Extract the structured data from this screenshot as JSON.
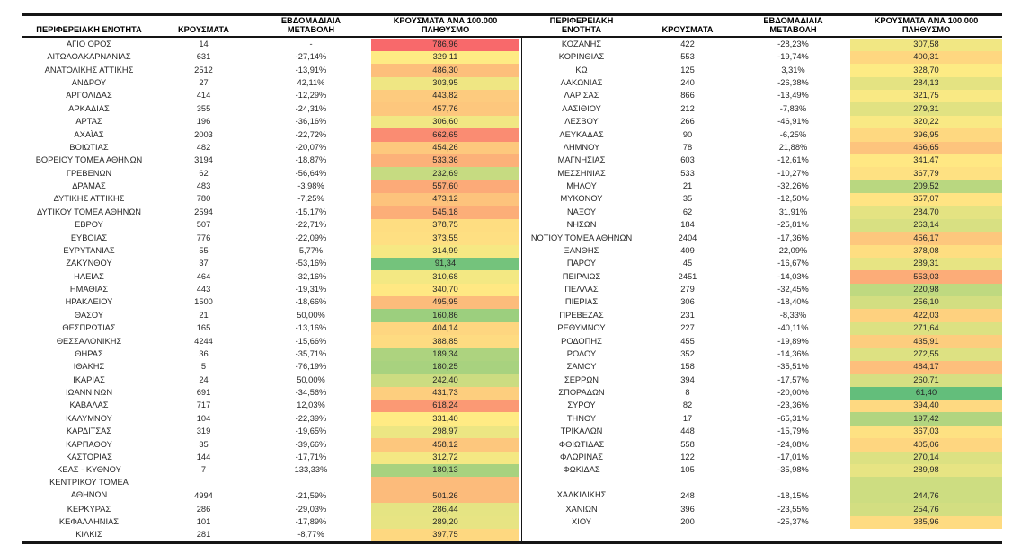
{
  "chart_data": {
    "type": "table",
    "title": "",
    "layout": "two side-by-side panels, heatmap on per-100k column",
    "heat_scale": {
      "applies_to": "per_100k column across both panels",
      "min_color": "#63BE7B",
      "mid_color": "#FFEB84",
      "max_color": "#F8696B",
      "mid_mode": "percentile50"
    },
    "border_color": "#151515",
    "headers": {
      "left": {
        "region": "ΠΕΡΙΦΕΡΕΙΑΚΗ ΕΝΟΤΗΤΑ",
        "cases": "ΚΡΟΥΣΜΑΤΑ",
        "weekly_change": "ΕΒΔΟΜΑΔΙΑΙΑ ΜΕΤΑΒΟΛΗ",
        "per_100k": "ΚΡΟΥΣΜΑΤΑ ΑΝΑ 100.000 ΠΛΗΘΥΣΜΟ"
      },
      "right": {
        "region": "ΠΕΡΙΦΕΡΕΙΑΚΗ ΕΝΟΤΗΤΑ",
        "cases": "ΚΡΟΥΣΜΑΤΑ",
        "weekly_change": "ΕΒΔΟΜΑΔΙΑΙΑ ΜΕΤΑΒΟΛΗ",
        "per_100k": "ΚΡΟΥΣΜΑΤΑ ΑΝΑ 100.000 ΠΛΗΘΥΣΜΟ"
      }
    },
    "left_rows": [
      [
        "ΑΓΙΟ ΟΡΟΣ",
        "14",
        "-",
        "786,96"
      ],
      [
        "ΑΙΤΩΛΟΑΚΑΡΝΑΝΙΑΣ",
        "631",
        "-27,14%",
        "329,11"
      ],
      [
        "ΑΝΑΤΟΛΙΚΗΣ ΑΤΤΙΚΗΣ",
        "2512",
        "-13,91%",
        "486,30"
      ],
      [
        "ΑΝΔΡΟΥ",
        "27",
        "42,11%",
        "303,95"
      ],
      [
        "ΑΡΓΟΛΙΔΑΣ",
        "414",
        "-12,29%",
        "443,82"
      ],
      [
        "ΑΡΚΑΔΙΑΣ",
        "355",
        "-24,31%",
        "457,76"
      ],
      [
        "ΑΡΤΑΣ",
        "196",
        "-36,16%",
        "306,60"
      ],
      [
        "ΑΧΑΪΑΣ",
        "2003",
        "-22,72%",
        "662,65"
      ],
      [
        "ΒΟΙΩΤΙΑΣ",
        "482",
        "-20,07%",
        "454,26"
      ],
      [
        "ΒΟΡΕΙΟΥ ΤΟΜΕΑ ΑΘΗΝΩΝ",
        "3194",
        "-18,87%",
        "533,36"
      ],
      [
        "ΓΡΕΒΕΝΩΝ",
        "62",
        "-56,64%",
        "232,69"
      ],
      [
        "ΔΡΑΜΑΣ",
        "483",
        "-3,98%",
        "557,60"
      ],
      [
        "ΔΥΤΙΚΗΣ ΑΤΤΙΚΗΣ",
        "780",
        "-7,25%",
        "473,12"
      ],
      [
        "ΔΥΤΙΚΟΥ ΤΟΜΕΑ ΑΘΗΝΩΝ",
        "2594",
        "-15,17%",
        "545,18"
      ],
      [
        "ΕΒΡΟΥ",
        "507",
        "-22,71%",
        "378,75"
      ],
      [
        "ΕΥΒΟΙΑΣ",
        "776",
        "-22,09%",
        "373,55"
      ],
      [
        "ΕΥΡΥΤΑΝΙΑΣ",
        "55",
        "5,77%",
        "314,99"
      ],
      [
        "ΖΑΚΥΝΘΟΥ",
        "37",
        "-53,16%",
        "91,34"
      ],
      [
        "ΗΛΕΙΑΣ",
        "464",
        "-32,16%",
        "310,68"
      ],
      [
        "ΗΜΑΘΙΑΣ",
        "443",
        "-19,31%",
        "340,70"
      ],
      [
        "ΗΡΑΚΛΕΙΟΥ",
        "1500",
        "-18,66%",
        "495,95"
      ],
      [
        "ΘΑΣΟΥ",
        "21",
        "50,00%",
        "160,86"
      ],
      [
        "ΘΕΣΠΡΩΤΙΑΣ",
        "165",
        "-13,16%",
        "404,14"
      ],
      [
        "ΘΕΣΣΑΛΟΝΙΚΗΣ",
        "4244",
        "-15,66%",
        "388,85"
      ],
      [
        "ΘΗΡΑΣ",
        "36",
        "-35,71%",
        "189,34"
      ],
      [
        "ΙΘΑΚΗΣ",
        "5",
        "-76,19%",
        "180,25"
      ],
      [
        "ΙΚΑΡΙΑΣ",
        "24",
        "50,00%",
        "242,40"
      ],
      [
        "ΙΩΑΝΝΙΝΩΝ",
        "691",
        "-34,56%",
        "431,73"
      ],
      [
        "ΚΑΒΑΛΑΣ",
        "717",
        "12,03%",
        "618,24"
      ],
      [
        "ΚΑΛΥΜΝΟΥ",
        "104",
        "-22,39%",
        "331,40"
      ],
      [
        "ΚΑΡΔΙΤΣΑΣ",
        "319",
        "-19,65%",
        "298,97"
      ],
      [
        "ΚΑΡΠΑΘΟΥ",
        "35",
        "-39,66%",
        "458,12"
      ],
      [
        "ΚΑΣΤΟΡΙΑΣ",
        "144",
        "-17,71%",
        "312,72"
      ],
      [
        "ΚΕΑΣ - ΚΥΘΝΟΥ",
        "7",
        "133,33%",
        "180,13"
      ],
      {
        "region_lines": [
          "ΚΕΝΤΡΙΚΟΥ ΤΟΜΕΑ",
          "ΑΘΗΝΩΝ"
        ],
        "cells": [
          "4994",
          "-21,59%",
          "501,26"
        ]
      },
      [
        "ΚΕΡΚΥΡΑΣ",
        "286",
        "-29,03%",
        "286,44"
      ],
      [
        "ΚΕΦΑΛΛΗΝΙΑΣ",
        "101",
        "-17,89%",
        "289,20"
      ],
      [
        "ΚΙΛΚΙΣ",
        "281",
        "-8,77%",
        "397,75"
      ]
    ],
    "right_rows": [
      [
        "ΚΟΖΑΝΗΣ",
        "422",
        "-28,23%",
        "307,58"
      ],
      [
        "ΚΟΡΙΝΘΙΑΣ",
        "553",
        "-19,74%",
        "400,31"
      ],
      [
        "ΚΩ",
        "125",
        "3,31%",
        "328,70"
      ],
      [
        "ΛΑΚΩΝΙΑΣ",
        "240",
        "-26,38%",
        "284,13"
      ],
      [
        "ΛΑΡΙΣΑΣ",
        "866",
        "-13,49%",
        "321,75"
      ],
      [
        "ΛΑΣΙΘΙΟΥ",
        "212",
        "-7,83%",
        "279,31"
      ],
      [
        "ΛΕΣΒΟΥ",
        "266",
        "-46,91%",
        "320,22"
      ],
      [
        "ΛΕΥΚΑΔΑΣ",
        "90",
        "-6,25%",
        "396,95"
      ],
      [
        "ΛΗΜΝΟΥ",
        "78",
        "21,88%",
        "466,65"
      ],
      [
        "ΜΑΓΝΗΣΙΑΣ",
        "603",
        "-12,61%",
        "341,47"
      ],
      [
        "ΜΕΣΣΗΝΙΑΣ",
        "533",
        "-10,27%",
        "367,79"
      ],
      [
        "ΜΗΛΟΥ",
        "21",
        "-32,26%",
        "209,52"
      ],
      [
        "ΜΥΚΟΝΟΥ",
        "35",
        "-12,50%",
        "357,07"
      ],
      [
        "ΝΑΞΟΥ",
        "62",
        "31,91%",
        "284,70"
      ],
      [
        "ΝΗΣΩΝ",
        "184",
        "-25,81%",
        "263,14"
      ],
      [
        "ΝΟΤΙΟΥ ΤΟΜΕΑ ΑΘΗΝΩΝ",
        "2404",
        "-17,36%",
        "456,17"
      ],
      [
        "ΞΑΝΘΗΣ",
        "409",
        "22,09%",
        "378,08"
      ],
      [
        "ΠΑΡΟΥ",
        "45",
        "-16,67%",
        "289,31"
      ],
      [
        "ΠΕΙΡΑΙΩΣ",
        "2451",
        "-14,03%",
        "553,03"
      ],
      [
        "ΠΕΛΛΑΣ",
        "279",
        "-32,45%",
        "220,98"
      ],
      [
        "ΠΙΕΡΙΑΣ",
        "306",
        "-18,40%",
        "256,10"
      ],
      [
        "ΠΡΕΒΕΖΑΣ",
        "231",
        "-8,33%",
        "422,03"
      ],
      [
        "ΡΕΘΥΜΝΟΥ",
        "227",
        "-40,11%",
        "271,64"
      ],
      [
        "ΡΟΔΟΠΗΣ",
        "455",
        "-19,89%",
        "435,91"
      ],
      [
        "ΡΟΔΟΥ",
        "352",
        "-14,36%",
        "272,55"
      ],
      [
        "ΣΑΜΟΥ",
        "158",
        "-35,51%",
        "484,17"
      ],
      [
        "ΣΕΡΡΩΝ",
        "394",
        "-17,57%",
        "260,71"
      ],
      [
        "ΣΠΟΡΑΔΩΝ",
        "8",
        "-20,00%",
        "61,40"
      ],
      [
        "ΣΥΡΟΥ",
        "82",
        "-23,36%",
        "394,40"
      ],
      [
        "ΤΗΝΟΥ",
        "17",
        "-65,31%",
        "197,42"
      ],
      [
        "ΤΡΙΚΑΛΩΝ",
        "448",
        "-15,79%",
        "367,03"
      ],
      [
        "ΦΘΙΩΤΙΔΑΣ",
        "558",
        "-24,08%",
        "405,06"
      ],
      [
        "ΦΛΩΡΙΝΑΣ",
        "122",
        "-17,01%",
        "270,14"
      ],
      [
        "ΦΩΚΙΔΑΣ",
        "105",
        "-35,98%",
        "289,98"
      ],
      {
        "region_lines": [
          "",
          "ΧΑΛΚΙΔΙΚΗΣ"
        ],
        "cells": [
          "248",
          "-18,15%",
          "244,76"
        ]
      },
      [
        "ΧΑΝΙΩΝ",
        "396",
        "-23,55%",
        "254,76"
      ],
      [
        "ΧΙΟΥ",
        "200",
        "-25,37%",
        "385,96"
      ]
    ]
  }
}
